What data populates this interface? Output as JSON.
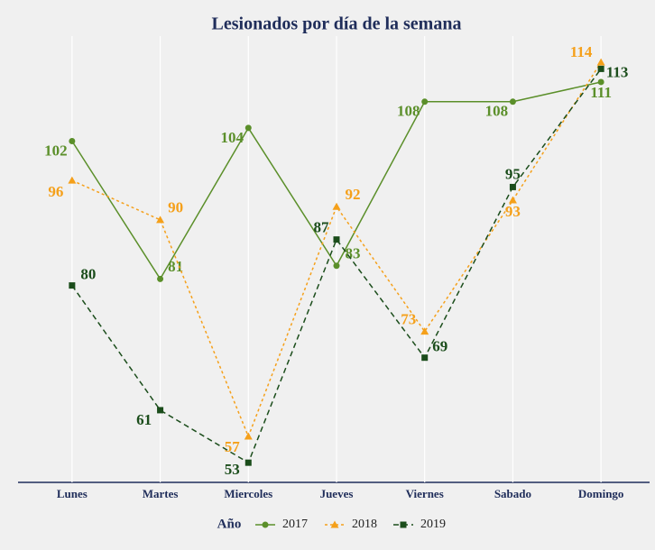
{
  "chart_data": {
    "type": "line",
    "title": "Lesionados por día de la semana",
    "categories": [
      "Lunes",
      "Martes",
      "Miercoles",
      "Jueves",
      "Viernes",
      "Sabado",
      "Domingo"
    ],
    "series": [
      {
        "name": "2017",
        "color": "#5b8f2a",
        "values": [
          102,
          81,
          104,
          83,
          108,
          108,
          111
        ]
      },
      {
        "name": "2018",
        "color": "#f5a01a",
        "values": [
          96,
          90,
          57,
          92,
          73,
          93,
          114
        ]
      },
      {
        "name": "2019",
        "color": "#1b4d1b",
        "values": [
          80,
          61,
          53,
          87,
          69,
          95,
          113
        ]
      }
    ],
    "ylim": [
      50,
      118
    ],
    "grid": true,
    "legend_title": "Año",
    "legend": "bottom"
  }
}
